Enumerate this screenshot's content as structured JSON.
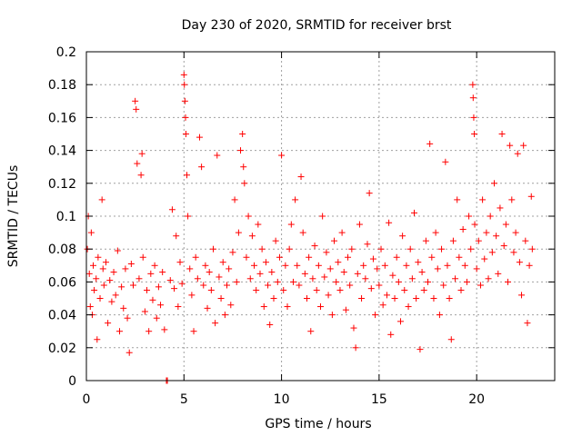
{
  "chart_data": {
    "type": "scatter",
    "title": "Day 230 of 2020, SRMTID for receiver brst",
    "xlabel": "GPS time / hours",
    "ylabel": "SRMTID / TECUs",
    "xlim": [
      0,
      24
    ],
    "ylim": [
      0,
      0.2
    ],
    "x_ticks": [
      0,
      5,
      10,
      15,
      20
    ],
    "x_tick_labels": [
      "0",
      "5",
      "10",
      "15",
      "20"
    ],
    "y_ticks": [
      0,
      0.02,
      0.04,
      0.06,
      0.08,
      0.1,
      0.12,
      0.14,
      0.16,
      0.18,
      0.2
    ],
    "y_tick_labels": [
      "0",
      "0.02",
      "0.04",
      "0.06",
      "0.08",
      "0.1",
      "0.12",
      "0.14",
      "0.16",
      "0.18",
      "0.2"
    ],
    "grid": true,
    "marker": "+",
    "series_color": "#ff0000",
    "series": [
      {
        "name": "SRMTID",
        "points": [
          [
            0.05,
            0.08
          ],
          [
            0.1,
            0.1
          ],
          [
            0.15,
            0.065
          ],
          [
            0.2,
            0.045
          ],
          [
            0.25,
            0.09
          ],
          [
            0.3,
            0.04
          ],
          [
            0.35,
            0.07
          ],
          [
            0.4,
            0.055
          ],
          [
            0.5,
            0.062
          ],
          [
            0.55,
            0.025
          ],
          [
            0.6,
            0.075
          ],
          [
            0.7,
            0.05
          ],
          [
            0.8,
            0.11
          ],
          [
            0.85,
            0.068
          ],
          [
            0.9,
            0.058
          ],
          [
            1.0,
            0.072
          ],
          [
            1.1,
            0.035
          ],
          [
            1.2,
            0.061
          ],
          [
            1.3,
            0.048
          ],
          [
            1.4,
            0.066
          ],
          [
            1.5,
            0.052
          ],
          [
            1.6,
            0.079
          ],
          [
            1.7,
            0.03
          ],
          [
            1.8,
            0.057
          ],
          [
            1.9,
            0.044
          ],
          [
            2.0,
            0.068
          ],
          [
            2.1,
            0.038
          ],
          [
            2.2,
            0.017
          ],
          [
            2.3,
            0.071
          ],
          [
            2.4,
            0.058
          ],
          [
            2.5,
            0.17
          ],
          [
            2.55,
            0.165
          ],
          [
            2.6,
            0.132
          ],
          [
            2.7,
            0.062
          ],
          [
            2.8,
            0.125
          ],
          [
            2.85,
            0.138
          ],
          [
            2.9,
            0.075
          ],
          [
            3.0,
            0.042
          ],
          [
            3.1,
            0.055
          ],
          [
            3.2,
            0.03
          ],
          [
            3.3,
            0.065
          ],
          [
            3.4,
            0.049
          ],
          [
            3.5,
            0.07
          ],
          [
            3.6,
            0.038
          ],
          [
            3.7,
            0.057
          ],
          [
            3.8,
            0.046
          ],
          [
            3.9,
            0.066
          ],
          [
            4.0,
            0.031
          ],
          [
            4.1,
            0.0
          ],
          [
            4.15,
            0.0
          ],
          [
            4.3,
            0.061
          ],
          [
            4.4,
            0.104
          ],
          [
            4.5,
            0.056
          ],
          [
            4.6,
            0.088
          ],
          [
            4.7,
            0.045
          ],
          [
            4.8,
            0.072
          ],
          [
            4.9,
            0.059
          ],
          [
            5.0,
            0.186
          ],
          [
            5.02,
            0.18
          ],
          [
            5.05,
            0.17
          ],
          [
            5.08,
            0.16
          ],
          [
            5.1,
            0.15
          ],
          [
            5.15,
            0.125
          ],
          [
            5.2,
            0.1
          ],
          [
            5.3,
            0.068
          ],
          [
            5.4,
            0.052
          ],
          [
            5.5,
            0.03
          ],
          [
            5.6,
            0.075
          ],
          [
            5.7,
            0.062
          ],
          [
            5.8,
            0.148
          ],
          [
            5.9,
            0.13
          ],
          [
            6.0,
            0.058
          ],
          [
            6.1,
            0.07
          ],
          [
            6.2,
            0.044
          ],
          [
            6.3,
            0.066
          ],
          [
            6.4,
            0.055
          ],
          [
            6.5,
            0.08
          ],
          [
            6.6,
            0.035
          ],
          [
            6.7,
            0.137
          ],
          [
            6.8,
            0.063
          ],
          [
            6.9,
            0.05
          ],
          [
            7.0,
            0.072
          ],
          [
            7.1,
            0.04
          ],
          [
            7.2,
            0.058
          ],
          [
            7.3,
            0.068
          ],
          [
            7.4,
            0.046
          ],
          [
            7.5,
            0.078
          ],
          [
            7.6,
            0.11
          ],
          [
            7.7,
            0.06
          ],
          [
            7.8,
            0.09
          ],
          [
            7.9,
            0.14
          ],
          [
            8.0,
            0.15
          ],
          [
            8.05,
            0.13
          ],
          [
            8.1,
            0.12
          ],
          [
            8.2,
            0.075
          ],
          [
            8.3,
            0.1
          ],
          [
            8.4,
            0.062
          ],
          [
            8.5,
            0.088
          ],
          [
            8.6,
            0.07
          ],
          [
            8.7,
            0.055
          ],
          [
            8.8,
            0.095
          ],
          [
            8.9,
            0.065
          ],
          [
            9.0,
            0.08
          ],
          [
            9.1,
            0.045
          ],
          [
            9.2,
            0.072
          ],
          [
            9.3,
            0.058
          ],
          [
            9.4,
            0.034
          ],
          [
            9.5,
            0.066
          ],
          [
            9.6,
            0.05
          ],
          [
            9.7,
            0.085
          ],
          [
            9.8,
            0.06
          ],
          [
            9.9,
            0.075
          ],
          [
            10.0,
            0.137
          ],
          [
            10.1,
            0.055
          ],
          [
            10.2,
            0.07
          ],
          [
            10.3,
            0.045
          ],
          [
            10.4,
            0.08
          ],
          [
            10.5,
            0.095
          ],
          [
            10.6,
            0.06
          ],
          [
            10.7,
            0.11
          ],
          [
            10.8,
            0.07
          ],
          [
            10.9,
            0.058
          ],
          [
            11.0,
            0.124
          ],
          [
            11.1,
            0.09
          ],
          [
            11.2,
            0.065
          ],
          [
            11.3,
            0.05
          ],
          [
            11.4,
            0.075
          ],
          [
            11.5,
            0.03
          ],
          [
            11.6,
            0.062
          ],
          [
            11.7,
            0.082
          ],
          [
            11.8,
            0.055
          ],
          [
            11.9,
            0.07
          ],
          [
            12.0,
            0.045
          ],
          [
            12.1,
            0.1
          ],
          [
            12.2,
            0.063
          ],
          [
            12.3,
            0.078
          ],
          [
            12.4,
            0.052
          ],
          [
            12.5,
            0.068
          ],
          [
            12.6,
            0.04
          ],
          [
            12.7,
            0.085
          ],
          [
            12.8,
            0.06
          ],
          [
            12.9,
            0.072
          ],
          [
            13.0,
            0.055
          ],
          [
            13.1,
            0.09
          ],
          [
            13.2,
            0.066
          ],
          [
            13.3,
            0.043
          ],
          [
            13.4,
            0.075
          ],
          [
            13.5,
            0.058
          ],
          [
            13.6,
            0.08
          ],
          [
            13.7,
            0.032
          ],
          [
            13.8,
            0.02
          ],
          [
            13.9,
            0.065
          ],
          [
            14.0,
            0.095
          ],
          [
            14.1,
            0.05
          ],
          [
            14.2,
            0.07
          ],
          [
            14.3,
            0.062
          ],
          [
            14.4,
            0.083
          ],
          [
            14.5,
            0.114
          ],
          [
            14.6,
            0.056
          ],
          [
            14.7,
            0.074
          ],
          [
            14.8,
            0.04
          ],
          [
            14.9,
            0.068
          ],
          [
            15.0,
            0.058
          ],
          [
            15.1,
            0.08
          ],
          [
            15.2,
            0.046
          ],
          [
            15.3,
            0.07
          ],
          [
            15.4,
            0.052
          ],
          [
            15.5,
            0.096
          ],
          [
            15.6,
            0.028
          ],
          [
            15.7,
            0.064
          ],
          [
            15.8,
            0.05
          ],
          [
            15.9,
            0.075
          ],
          [
            16.0,
            0.06
          ],
          [
            16.1,
            0.036
          ],
          [
            16.2,
            0.088
          ],
          [
            16.3,
            0.055
          ],
          [
            16.4,
            0.07
          ],
          [
            16.5,
            0.045
          ],
          [
            16.6,
            0.08
          ],
          [
            16.7,
            0.062
          ],
          [
            16.8,
            0.102
          ],
          [
            16.9,
            0.05
          ],
          [
            17.0,
            0.072
          ],
          [
            17.1,
            0.019
          ],
          [
            17.2,
            0.066
          ],
          [
            17.3,
            0.055
          ],
          [
            17.4,
            0.085
          ],
          [
            17.5,
            0.06
          ],
          [
            17.6,
            0.144
          ],
          [
            17.7,
            0.075
          ],
          [
            17.8,
            0.05
          ],
          [
            17.9,
            0.09
          ],
          [
            18.0,
            0.068
          ],
          [
            18.1,
            0.04
          ],
          [
            18.2,
            0.08
          ],
          [
            18.3,
            0.058
          ],
          [
            18.4,
            0.133
          ],
          [
            18.5,
            0.07
          ],
          [
            18.6,
            0.05
          ],
          [
            18.7,
            0.025
          ],
          [
            18.8,
            0.085
          ],
          [
            18.9,
            0.062
          ],
          [
            19.0,
            0.11
          ],
          [
            19.1,
            0.075
          ],
          [
            19.2,
            0.055
          ],
          [
            19.3,
            0.092
          ],
          [
            19.4,
            0.07
          ],
          [
            19.5,
            0.06
          ],
          [
            19.6,
            0.1
          ],
          [
            19.7,
            0.08
          ],
          [
            19.8,
            0.18
          ],
          [
            19.82,
            0.172
          ],
          [
            19.85,
            0.16
          ],
          [
            19.88,
            0.15
          ],
          [
            19.9,
            0.095
          ],
          [
            20.0,
            0.068
          ],
          [
            20.1,
            0.085
          ],
          [
            20.2,
            0.058
          ],
          [
            20.3,
            0.11
          ],
          [
            20.4,
            0.074
          ],
          [
            20.5,
            0.09
          ],
          [
            20.6,
            0.062
          ],
          [
            20.7,
            0.1
          ],
          [
            20.8,
            0.078
          ],
          [
            20.9,
            0.12
          ],
          [
            21.0,
            0.088
          ],
          [
            21.1,
            0.065
          ],
          [
            21.2,
            0.105
          ],
          [
            21.3,
            0.15
          ],
          [
            21.4,
            0.082
          ],
          [
            21.5,
            0.095
          ],
          [
            21.6,
            0.06
          ],
          [
            21.7,
            0.143
          ],
          [
            21.8,
            0.11
          ],
          [
            21.9,
            0.078
          ],
          [
            22.0,
            0.09
          ],
          [
            22.1,
            0.138
          ],
          [
            22.2,
            0.072
          ],
          [
            22.3,
            0.052
          ],
          [
            22.4,
            0.143
          ],
          [
            22.5,
            0.085
          ],
          [
            22.6,
            0.035
          ],
          [
            22.7,
            0.07
          ],
          [
            22.8,
            0.112
          ],
          [
            22.85,
            0.08
          ]
        ]
      }
    ]
  }
}
